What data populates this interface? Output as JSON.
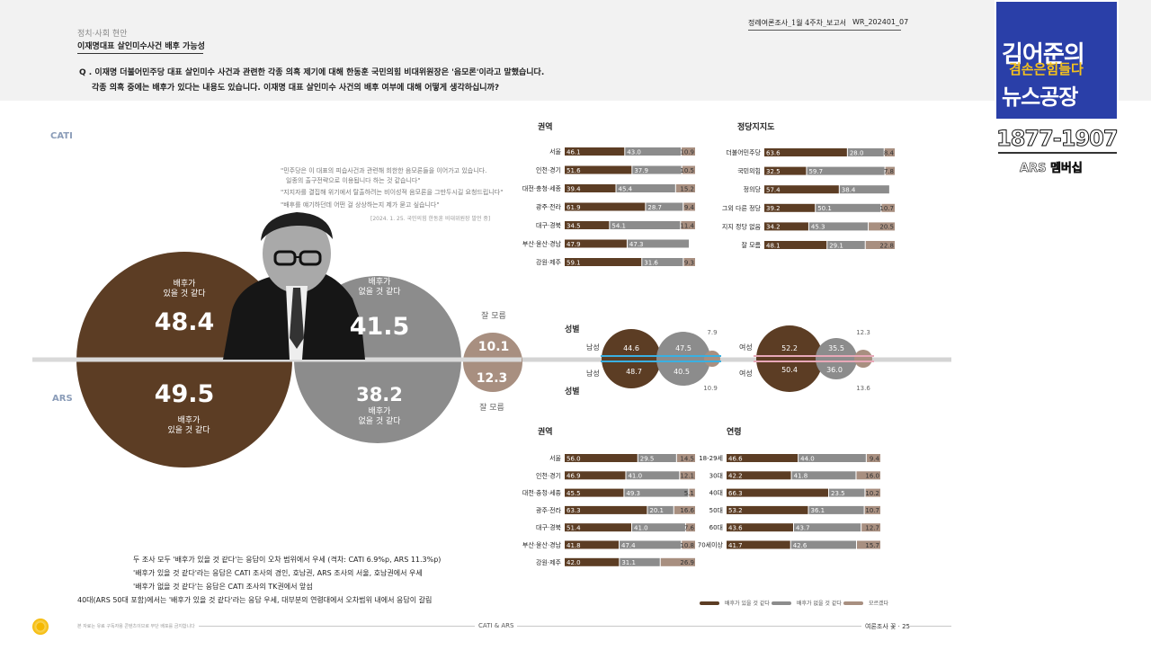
{
  "header": {
    "section": "정치·사회 현안",
    "title": "이재명대표 살인미수사건 배후 가능성",
    "publication": "정례여론조사_1월 4주차_보고서",
    "code": "WR_202401_07",
    "question_line1": "Q . 이재명 더불어민주당 대표 살인미수 사건과 관련한 각종 의혹 제기에 대해 한동훈 국민의힘 비대위원장은 '음모론'이라고 말했습니다.",
    "question_line2": "각종 의혹 중에는 배후가 있다는 내용도 있습니다. 이재명 대표 살인미수 사건의 배후 여부에 대해 어떻게 생각하십니까?"
  },
  "quote": {
    "line1": "\"민주당은 이 대표의 피습사건과 관련해 희한한 음모론들을 이어가고 있습니다.",
    "line2": "일종의 출구전략으로 이용됩니다 하는 것 같습니다\"",
    "line3": "\"지지자를 결집해 위기에서 탈출하려는 비이성적 음모론을 그만두시길 요청드립니다\"",
    "line4": "\"배후를 얘기하던데 어떤 걸 상상하는지 제가 묻고 싶습니다\"",
    "source": "[2024. 1. 25. 국민의힘 한동훈 비대위원장 발언 중]"
  },
  "main": {
    "cati_label": "CATI",
    "ars_label": "ARS",
    "yes_label_1": "배후가",
    "yes_label_2": "있을 것 같다",
    "no_label_1": "배후가",
    "no_label_2": "없을 것 같다",
    "dk_label": "잘 모름",
    "cati_yes": "48.4",
    "cati_no": "41.5",
    "cati_dk": "10.1",
    "ars_yes": "49.5",
    "ars_no": "38.2",
    "ars_dk": "12.3"
  },
  "colors": {
    "yes": "#5c3d24",
    "no": "#8c8c8c",
    "dk": "#a88f80",
    "male": "#3ab0e2",
    "female": "#e8a8b8"
  },
  "gender": {
    "title_top": "성별",
    "title_bottom": "성별",
    "male": "남성",
    "female": "여성",
    "cati_male": [
      "44.6",
      "47.5",
      "7.9"
    ],
    "ars_male": [
      "48.7",
      "40.5",
      "10.9"
    ],
    "cati_female": [
      "52.2",
      "35.5",
      "12.3"
    ],
    "ars_female": [
      "50.4",
      "36.0",
      "13.6"
    ]
  },
  "footnotes": {
    "line1": "두 조사 모두 '배후가 있을 것 같다'는 응답이 오차 범위에서 우세 (격차: CATI 6.9%p, ARS 11.3%p)",
    "line2": "'배후가 있을 것 같다'라는 응답은 CATI 조사의 경인, 호남권, ARS 조사의 서울, 호남권에서 우세",
    "line3": "'배후가 없을 것 같다'는 응답은 CATI 조사의 TK권에서 앞섬",
    "line4": "40대(ARS 50대 포함)에서는 '배후가 있을 것 같다'라는 응답 우세, 대부분의 연령대에서 오차범위 내에서 응답이 갈림"
  },
  "legend": {
    "yes": "배후가 있을 것 같다",
    "no": "배후가 없을 것 같다",
    "dk": "모르겠다"
  },
  "footer": {
    "left_note": "본 자료는 유료 구독자용 콘텐츠이므로 무단 배포를 금지합니다",
    "center": "CATI & ARS",
    "right": "여론조사 꽃 · 25"
  },
  "overlay": {
    "title": "김어준의",
    "subtitle": "겸손은힘들다",
    "title2": "뉴스공장",
    "phone": "1877-1907",
    "ars": "ARS 멤버십"
  },
  "chart_data": [
    {
      "type": "bar",
      "title": "권역",
      "group": "CATI",
      "categories": [
        "서울",
        "인천·경기",
        "대전·충청·세종",
        "광주·전라",
        "대구·경북",
        "부산·울산·경남",
        "강원·제주"
      ],
      "series": [
        {
          "name": "배후가 있을 것 같다",
          "values": [
            46.1,
            51.6,
            39.4,
            61.9,
            34.5,
            47.9,
            59.1
          ]
        },
        {
          "name": "배후가 없을 것 같다",
          "values": [
            43.0,
            37.9,
            45.4,
            28.7,
            54.1,
            47.3,
            31.6
          ]
        },
        {
          "name": "모르겠다",
          "values": [
            10.9,
            10.5,
            15.2,
            9.4,
            11.4,
            null,
            9.3
          ]
        }
      ]
    },
    {
      "type": "bar",
      "title": "정당지지도",
      "group": "CATI",
      "categories": [
        "더불어민주당",
        "국민의힘",
        "정의당",
        "그외 다른 정당",
        "지지 정당 없음",
        "잘 모름"
      ],
      "series": [
        {
          "name": "배후가 있을 것 같다",
          "values": [
            63.6,
            32.5,
            57.4,
            39.2,
            34.2,
            48.1
          ]
        },
        {
          "name": "배후가 없을 것 같다",
          "values": [
            28.0,
            59.7,
            38.4,
            50.1,
            45.3,
            29.1
          ]
        },
        {
          "name": "모르겠다",
          "values": [
            8.4,
            7.8,
            null,
            10.7,
            20.5,
            22.8
          ]
        }
      ]
    },
    {
      "type": "bar",
      "title": "권역",
      "group": "ARS",
      "categories": [
        "서울",
        "인천·경기",
        "대전·충청·세종",
        "광주·전라",
        "대구·경북",
        "부산·울산·경남",
        "강원·제주"
      ],
      "series": [
        {
          "name": "배후가 있을 것 같다",
          "values": [
            56.0,
            46.9,
            45.5,
            63.3,
            51.4,
            41.8,
            42.0
          ]
        },
        {
          "name": "배후가 없을 것 같다",
          "values": [
            29.5,
            41.0,
            49.3,
            20.1,
            41.0,
            47.4,
            31.1
          ]
        },
        {
          "name": "모르겠다",
          "values": [
            14.5,
            12.1,
            5.1,
            16.6,
            7.6,
            10.8,
            26.9
          ]
        }
      ]
    },
    {
      "type": "bar",
      "title": "연령",
      "group": "ARS",
      "categories": [
        "18-29세",
        "30대",
        "40대",
        "50대",
        "60대",
        "70세이상"
      ],
      "series": [
        {
          "name": "배후가 있을 것 같다",
          "values": [
            46.6,
            42.2,
            66.3,
            53.2,
            43.6,
            41.7
          ]
        },
        {
          "name": "배후가 없을 것 같다",
          "values": [
            44.0,
            41.8,
            23.5,
            36.1,
            43.7,
            42.6
          ]
        },
        {
          "name": "모르겠다",
          "values": [
            9.4,
            16.0,
            10.2,
            10.7,
            12.7,
            15.7
          ]
        }
      ]
    }
  ]
}
